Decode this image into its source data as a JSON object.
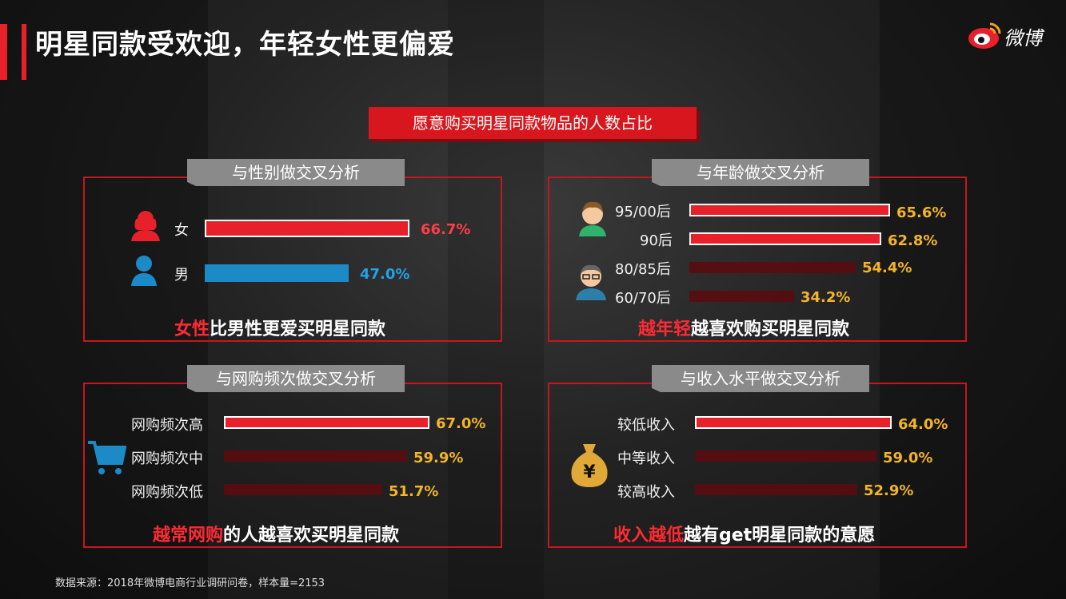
{
  "title": "明星同款受欢迎，年轻女性更偏爱",
  "logo_text": "微博",
  "banner": "愿意购买明星同款物品的人数占比",
  "source": "数据来源：2018年微博电商行业调研问卷，样本量=2153",
  "colors": {
    "accent": "#e8202a",
    "blue": "#1b8ac7",
    "gold": "#f3b429",
    "dim": "#5a0c0f"
  },
  "chart_data": [
    {
      "type": "bar",
      "title": "与性别做交叉分析",
      "categories": [
        "女",
        "男"
      ],
      "values": [
        66.7,
        47.0
      ],
      "value_labels": [
        "66.7%",
        "47.0%"
      ],
      "icons": [
        "female-user-icon",
        "male-user-icon"
      ],
      "conclusion_em": "女性",
      "conclusion_rest": "比男性更爱买明星同款"
    },
    {
      "type": "bar",
      "title": "与年龄做交叉分析",
      "categories": [
        "95/00后",
        "90后",
        "80/85后",
        "60/70后"
      ],
      "values": [
        65.6,
        62.8,
        54.4,
        34.2
      ],
      "value_labels": [
        "65.6%",
        "62.8%",
        "54.4%",
        "34.2%"
      ],
      "icons": [
        "young-person-icon",
        "older-person-icon"
      ],
      "conclusion_em": "越年轻",
      "conclusion_rest": "越喜欢购买明星同款"
    },
    {
      "type": "bar",
      "title": "与网购频次做交叉分析",
      "categories": [
        "网购频次高",
        "网购频次中",
        "网购频次低"
      ],
      "values": [
        67.0,
        59.9,
        51.7
      ],
      "value_labels": [
        "67.0%",
        "59.9%",
        "51.7%"
      ],
      "icons": [
        "shopping-cart-icon"
      ],
      "conclusion_em": "越常网购",
      "conclusion_rest": "的人越喜欢买明星同款"
    },
    {
      "type": "bar",
      "title": "与收入水平做交叉分析",
      "categories": [
        "较低收入",
        "中等收入",
        "较高收入"
      ],
      "values": [
        64.0,
        59.0,
        52.9
      ],
      "value_labels": [
        "64.0%",
        "59.0%",
        "52.9%"
      ],
      "icons": [
        "money-bag-icon"
      ],
      "conclusion_em": "收入越低",
      "conclusion_rest": "越有get明星同款的意愿"
    }
  ]
}
